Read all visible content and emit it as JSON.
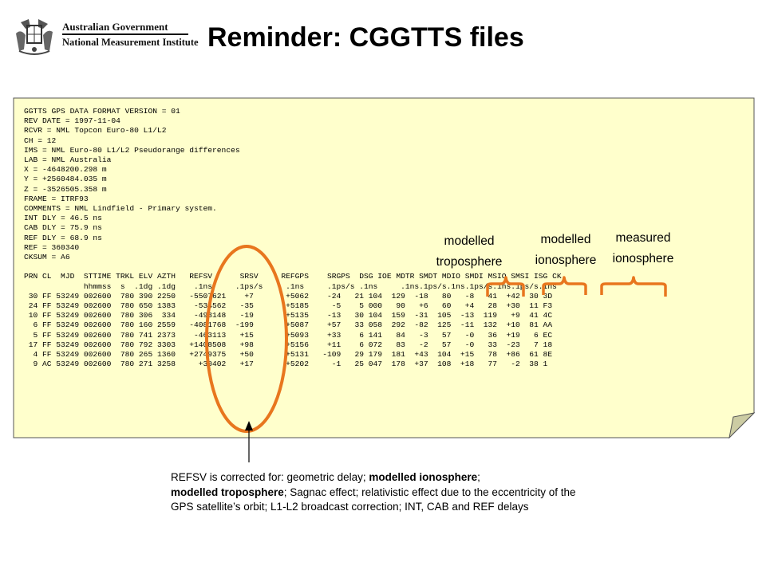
{
  "header": {
    "logo_line1": "Australian Government",
    "logo_line2": "National Measurement Institute",
    "title": "Reminder: CGGTTS files"
  },
  "file": {
    "lines": [
      "GGTTS GPS DATA FORMAT VERSION = 01",
      "REV DATE = 1997-11-04",
      "RCVR = NML Topcon Euro-80 L1/L2",
      "CH = 12",
      "IMS = NML Euro-80 L1/L2 Pseudorange differences",
      "LAB = NML Australia",
      "X = -4648200.298 m",
      "Y = +2560484.035 m",
      "Z = -3526505.358 m",
      "FRAME = ITRF93",
      "COMMENTS = NML Lindfield - Primary system.",
      "INT DLY = 46.5 ns",
      "CAB DLY = 75.9 ns",
      "REF DLY = 68.9 ns",
      "REF = 360340",
      "CKSUM = A6",
      "",
      "PRN CL  MJD  STTIME TRKL ELV AZTH   REFSV      SRSV     REFGPS    SRGPS  DSG IOE MDTR SMDT MDIO SMDI MSIO SMSI ISG CK",
      "             hhmmss  s  .1dg .1dg    .1ns     .1ps/s     .1ns     .1ps/s .1ns     .1ns.1ps/s.1ns.1ps/s.1ns.1ps/s.1ns",
      " 30 FF 53249 002600  780 390 2250   -5507621    +7       +5062    -24   21 104  129  -18   80   -8   41  +42  30 3D",
      " 24 FF 53249 002600  780 650 1383    -534562   -35       +5185     -5    5 000   90   +6   60   +4   28  +30  11 F3",
      " 10 FF 53249 002600  780 306  334    -493148   -19       +5135    -13   30 104  159  -31  105  -13  119   +9  41 4C",
      "  6 FF 53249 002600  780 160 2559   -4081768  -199       +5087    +57   33 058  292  -82  125  -11  132  +10  81 AA",
      "  5 FF 53249 002600  780 741 2373    -463113   +15       +5093    +33    6 141   84   -3   57   -0   36  +19   6 EC",
      " 17 FF 53249 002600  780 792 3303   +1408508   +98       +5156    +11    6 072   83   -2   57   -0   33  -23   7 18",
      "  4 FF 53249 002600  780 265 1360   +2749375   +50       +5131   -109   29 179  181  +43  104  +15   78  +86  61 8E",
      "  9 AC 53249 002600  780 271 3258     +30402   +17       +5202     -1   25 047  178  +37  108  +18   77   -2  38 1"
    ]
  },
  "annotations": {
    "troposphere": {
      "line1": "modelled",
      "line2": "troposphere"
    },
    "ionosphere_modelled": {
      "line1": "modelled",
      "line2": "ionosphere"
    },
    "ionosphere_measured": {
      "line1": "measured",
      "line2": "ionosphere"
    }
  },
  "note": {
    "p1": "REFSV is corrected for: geometric delay; ",
    "b1": "modelled ionosphere",
    "p2": ";",
    "b2": "modelled troposphere",
    "p3": ";  Sagnac effect; relativistic effect due to the eccentricity of the GPS satellite’s orbit; L1-L2 broadcast correction; INT, CAB and REF delays"
  },
  "colors": {
    "panel_fill": "#FFFFCC",
    "brace_orange": "#E8761E",
    "text": "#000000"
  },
  "icons": {
    "crest": "coat-of-arms-icon"
  }
}
